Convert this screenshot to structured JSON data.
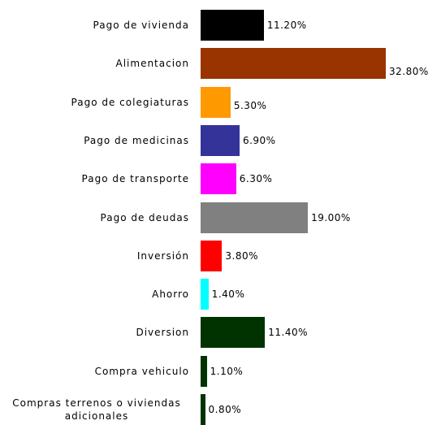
{
  "chart_data": {
    "type": "bar",
    "orientation": "horizontal",
    "categories": [
      "Pago de vivienda",
      "Alimentacion",
      "Pago de colegiaturas",
      "Pago de medicinas",
      "Pago de transporte",
      "Pago de deudas",
      "Inversión",
      "Ahorro",
      "Diversion",
      "Compra vehiculo",
      "Compras terrenos o viviendas adicionales"
    ],
    "values": [
      11.2,
      32.8,
      5.3,
      6.9,
      6.3,
      19.0,
      3.8,
      1.4,
      11.4,
      1.1,
      0.8
    ],
    "value_labels": [
      "11.20%",
      "32.80%",
      "5.30%",
      "6.90%",
      "6.30%",
      "19.00%",
      "3.80%",
      "1.40%",
      "11.40%",
      "1.10%",
      "0.80%"
    ],
    "colors": [
      "#000000",
      "#993300",
      "#ff9900",
      "#333399",
      "#ff00ff",
      "#808080",
      "#ff0000",
      "#00ffff",
      "#003300",
      "#003300",
      "#003300"
    ]
  }
}
